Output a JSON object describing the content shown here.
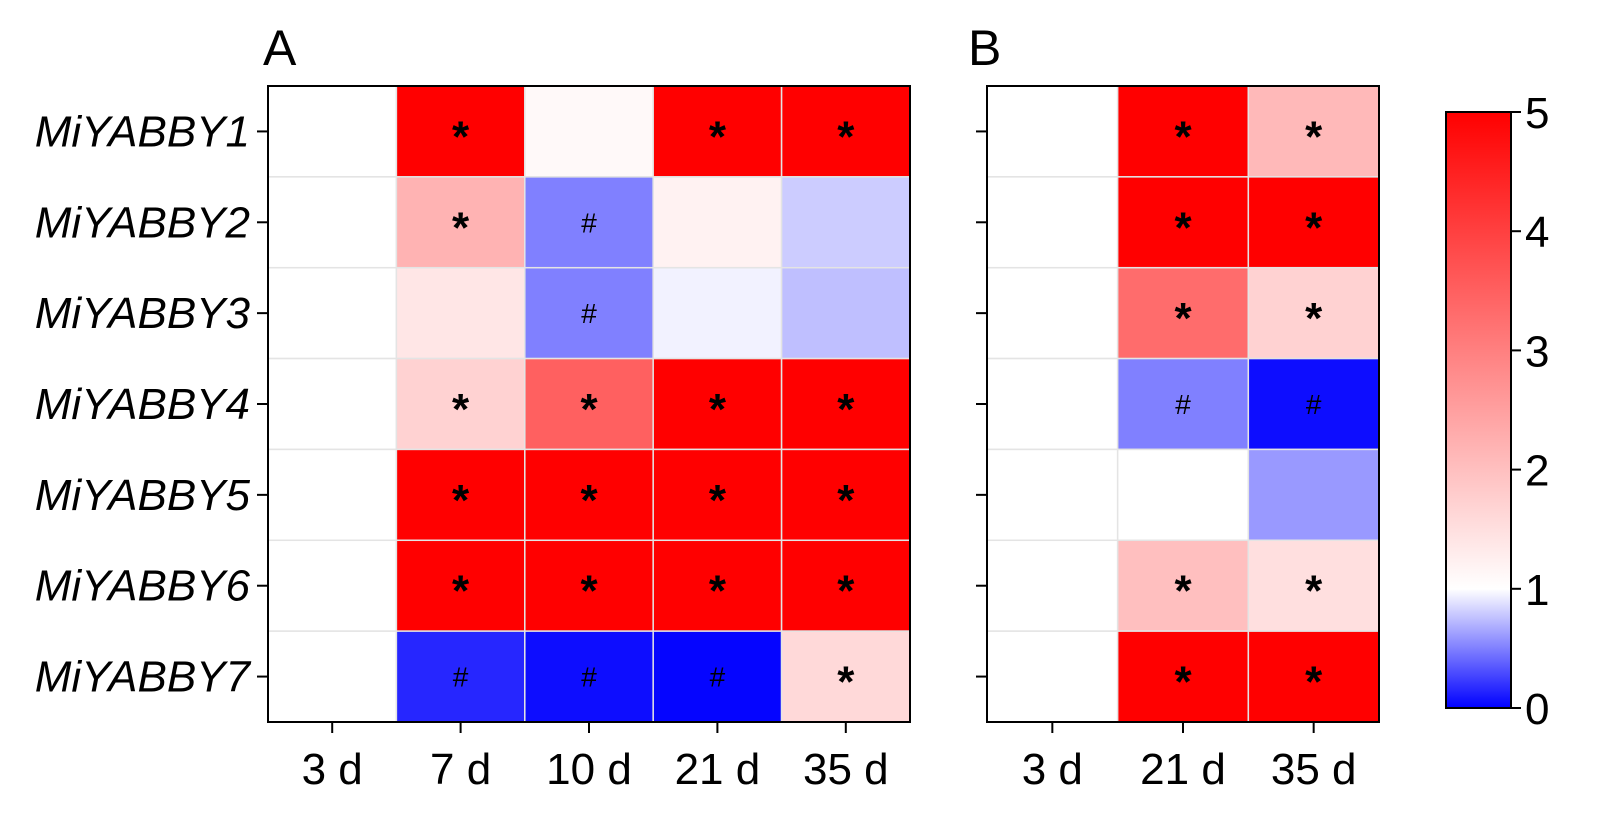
{
  "chart_data": [
    {
      "type": "heatmap",
      "panel": "A",
      "rows": [
        "MiYABBY1",
        "MiYABBY2",
        "MiYABBY3",
        "MiYABBY4",
        "MiYABBY5",
        "MiYABBY6",
        "MiYABBY7"
      ],
      "columns": [
        "3 d",
        "7 d",
        "10 d",
        "21 d",
        "35 d"
      ],
      "values": [
        [
          1,
          5,
          1.1,
          5,
          5
        ],
        [
          1,
          2.2,
          0.5,
          1.2,
          0.8
        ],
        [
          1,
          1.4,
          0.5,
          0.95,
          0.75
        ],
        [
          1,
          1.7,
          3.5,
          5,
          5
        ],
        [
          1,
          5,
          5,
          5,
          5
        ],
        [
          1,
          5,
          5,
          5,
          5
        ],
        [
          1,
          0.15,
          0.05,
          0.02,
          1.6
        ]
      ],
      "marks": [
        [
          "",
          "*",
          "",
          "*",
          "*"
        ],
        [
          "",
          "*",
          "#",
          "",
          ""
        ],
        [
          "",
          "",
          "#",
          "",
          ""
        ],
        [
          "",
          "*",
          "*",
          "*",
          "*"
        ],
        [
          "",
          "*",
          "*",
          "*",
          "*"
        ],
        [
          "",
          "*",
          "*",
          "*",
          "*"
        ],
        [
          "",
          "#",
          "#",
          "#",
          "*"
        ]
      ]
    },
    {
      "type": "heatmap",
      "panel": "B",
      "rows": [
        "MiYABBY1",
        "MiYABBY2",
        "MiYABBY3",
        "MiYABBY4",
        "MiYABBY5",
        "MiYABBY6",
        "MiYABBY7"
      ],
      "columns": [
        "3 d",
        "21 d",
        "35 d"
      ],
      "values": [
        [
          1,
          5,
          2.1
        ],
        [
          1,
          5,
          5
        ],
        [
          1,
          3.3,
          1.7
        ],
        [
          1,
          0.5,
          0.05
        ],
        [
          1,
          1,
          0.6
        ],
        [
          1,
          2,
          1.5
        ],
        [
          1,
          5,
          5
        ]
      ],
      "marks": [
        [
          "",
          "*",
          "*"
        ],
        [
          "",
          "*",
          "*"
        ],
        [
          "",
          "*",
          "*"
        ],
        [
          "",
          "#",
          "#"
        ],
        [
          "",
          "",
          ""
        ],
        [
          "",
          "*",
          "*"
        ],
        [
          "",
          "*",
          "*"
        ]
      ]
    }
  ],
  "colorbar": {
    "min": 0,
    "max": 5,
    "mid": 1,
    "ticks": [
      "0",
      "1",
      "2",
      "3",
      "4",
      "5"
    ],
    "low_color": "#0000ff",
    "mid_color": "#ffffff",
    "high_color": "#ff0000"
  }
}
